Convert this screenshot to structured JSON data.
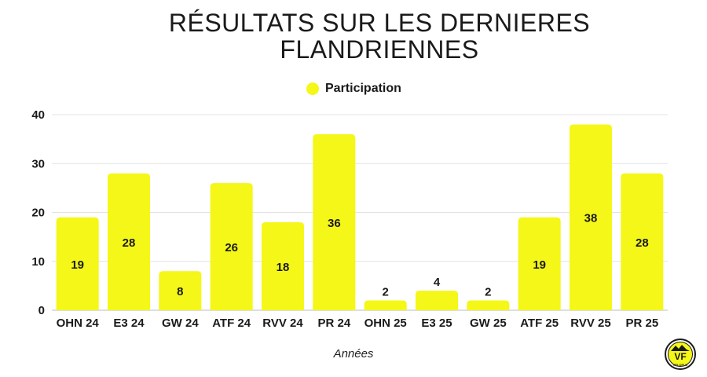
{
  "chart_data": {
    "type": "bar",
    "title": "RÉSULTATS SUR LES DERNIERES FLANDRIENNES",
    "title_lines": [
      "RÉSULTATS SUR LES DERNIERES",
      "FLANDRIENNES"
    ],
    "xlabel": "Années",
    "ylabel": "",
    "ylim": [
      0,
      40
    ],
    "yticks": [
      0,
      10,
      20,
      30,
      40
    ],
    "grid": true,
    "legend": "top-center",
    "categories": [
      "OHN 24",
      "E3 24",
      "GW 24",
      "ATF 24",
      "RVV 24",
      "PR 24",
      "OHN 25",
      "E3 25",
      "GW 25",
      "ATF 25",
      "RVV 25",
      "PR 25"
    ],
    "series": [
      {
        "name": "Participation",
        "color": "#f4f717",
        "values": [
          19,
          28,
          8,
          26,
          18,
          36,
          2,
          4,
          2,
          19,
          38,
          28
        ]
      }
    ]
  },
  "logo": {
    "text": "VF",
    "caption": "VELOFLU",
    "colors": {
      "ring": "#1a1a1a",
      "fill": "#f4f717"
    }
  }
}
